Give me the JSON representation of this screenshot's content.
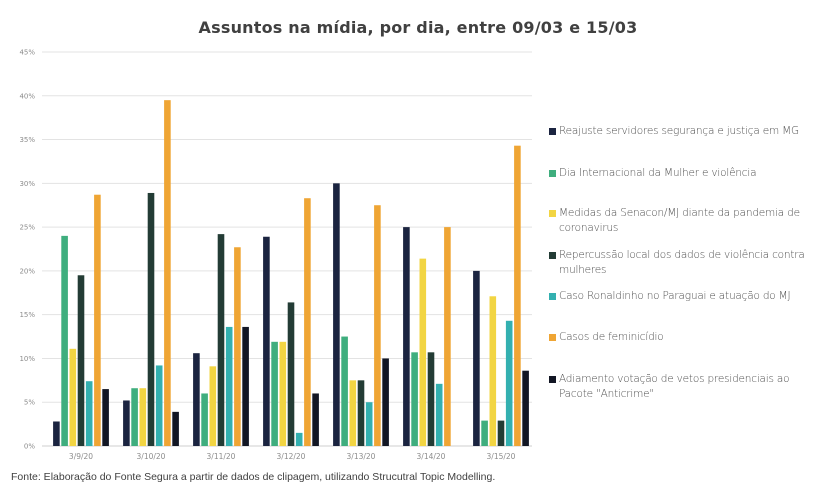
{
  "chart_data": {
    "type": "bar",
    "title": "Assuntos na mídia, por dia, entre 09/03 e 15/03",
    "xlabel": "",
    "ylabel": "",
    "ylim": [
      0,
      45
    ],
    "yticks": [
      0,
      5,
      10,
      15,
      20,
      25,
      30,
      35,
      40,
      45
    ],
    "ytick_labels": [
      "0%",
      "5%",
      "10%",
      "15%",
      "20%",
      "25%",
      "30%",
      "35%",
      "40%",
      "45%"
    ],
    "grid": true,
    "legend_position": "right",
    "categories": [
      "3/9/20",
      "3/10/20",
      "3/11/20",
      "3/12/20",
      "3/13/20",
      "3/14/20",
      "3/15/20"
    ],
    "series": [
      {
        "name": "Reajuste servidores segurança e justiça em MG",
        "color": "#1b2440",
        "values": [
          2.8,
          5.2,
          10.6,
          23.9,
          30.0,
          25.0,
          20.0
        ]
      },
      {
        "name": "Dia Internacional da Mulher e violência",
        "color": "#3fae7e",
        "values": [
          24.0,
          6.6,
          6.0,
          11.9,
          12.5,
          10.7,
          2.9
        ]
      },
      {
        "name": "Medidas da Senacon/MJ diante da pandemia de coronavirus",
        "color": "#f2d543",
        "values": [
          11.1,
          6.6,
          9.1,
          11.9,
          7.5,
          21.4,
          17.1
        ]
      },
      {
        "name": "Repercussão local dos dados de violência contra mulheres",
        "color": "#233c35",
        "values": [
          19.5,
          28.9,
          24.2,
          16.4,
          7.5,
          10.7,
          2.9
        ]
      },
      {
        "name": "Caso Ronaldinho no Paraguai e atuação do MJ",
        "color": "#33b0b0",
        "values": [
          7.4,
          9.2,
          13.6,
          1.5,
          5.0,
          7.1,
          14.3
        ]
      },
      {
        "name": "Casos de feminicídio",
        "color": "#efa534",
        "values": [
          28.7,
          39.5,
          22.7,
          28.3,
          27.5,
          25.0,
          34.3
        ]
      },
      {
        "name": "Adiamento votação de vetos presidenciais ao Pacote \"Anticrime\"",
        "color": "#121624",
        "values": [
          6.5,
          3.9,
          13.6,
          6.0,
          10.0,
          0,
          8.6
        ]
      }
    ]
  },
  "source_note": "Fonte: Elaboração do Fonte Segura a partir de dados de clipagem, utilizando Strucutral Topic Modelling."
}
